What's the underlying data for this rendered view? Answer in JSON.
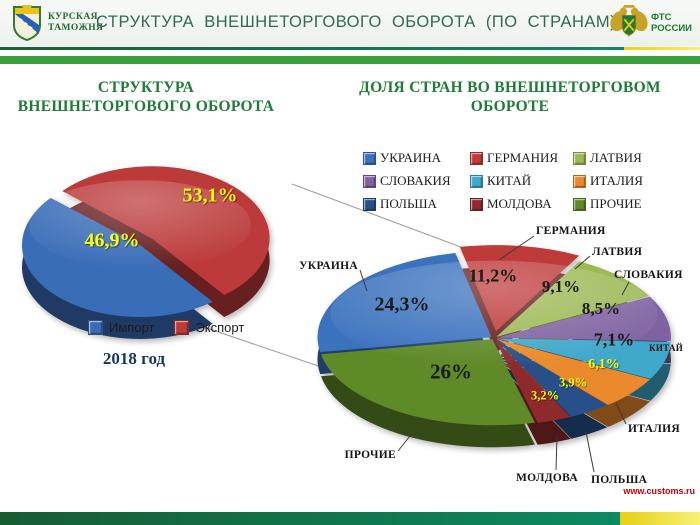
{
  "header": {
    "org_name_line1": "КУРСКАЯ",
    "org_name_line2": "ТАМОЖНЯ",
    "title": "СТРУКТУРА ВНЕШНЕТОРГОВОГО ОБОРОТА (ПО СТРАНАМ)",
    "fts_line1": "ФТС",
    "fts_line2": "РОССИИ"
  },
  "left_panel": {
    "title_line1": "СТРУКТУРА",
    "title_line2": "ВНЕШНЕТОРГОВОГО  ОБОРОТА",
    "year_label": "2018 год"
  },
  "right_panel": {
    "title_line1": "ДОЛЯ СТРАН ВО ВНЕШНЕТОРГОВОМ",
    "title_line2": "ОБОРОТЕ",
    "legend_order": [
      "УКРАИНА",
      "ГЕРМАНИЯ",
      "ЛАТВИЯ",
      "СЛОВАКИЯ",
      "КИТАЙ",
      "ИТАЛИЯ",
      "ПОЛЬША",
      "МОЛДОВА",
      "ПРОЧИЕ"
    ]
  },
  "footer": {
    "website": "www.customs.ru"
  },
  "accent_colors": {
    "title_green": "#1e7c36",
    "header_green": "#2e6a54",
    "footer_red": "#c00000",
    "label_yellow": "#ffff00"
  },
  "chart_data": [
    {
      "type": "pie",
      "title": "СТРУКТУРА ВНЕШНЕТОРГОВОГО ОБОРОТА",
      "subtitle": "2018 год",
      "legend_position": "bottom",
      "series": [
        {
          "name": "Импорт",
          "value": 46.9,
          "label": "46,9%",
          "color": "#3a6db8",
          "label_color": "#ffff00"
        },
        {
          "name": "Экспорт",
          "value": 53.1,
          "label": "53,1%",
          "color": "#bc3a3a",
          "label_color": "#ffff00"
        }
      ]
    },
    {
      "type": "pie",
      "title": "ДОЛЯ СТРАН ВО ВНЕШНЕТОРГОВОМ ОБОРОТЕ",
      "legend_position": "top",
      "series": [
        {
          "name": "ГЕРМАНИЯ",
          "value": 11.2,
          "label": "11,2%",
          "color": "#be3b3a",
          "label_color": "#1a1a1a"
        },
        {
          "name": "ЛАТВИЯ",
          "value": 9.1,
          "label": "9,1%",
          "color": "#9bb954",
          "label_color": "#1a1a1a"
        },
        {
          "name": "СЛОВАКИЯ",
          "value": 8.5,
          "label": "8,5%",
          "color": "#7e62a1",
          "label_color": "#1a1a1a"
        },
        {
          "name": "КИТАЙ",
          "value": 7.1,
          "label": "7,1%",
          "color": "#3fa8cb",
          "label_color": "#1a1a1a"
        },
        {
          "name": "ИТАЛИЯ",
          "value": 6.1,
          "label": "6,1%",
          "color": "#e98a2d",
          "label_color": "#ffff00"
        },
        {
          "name": "ПОЛЬША",
          "value": 3.9,
          "label": "3,9%",
          "color": "#27508b",
          "label_color": "#ffff00"
        },
        {
          "name": "МОЛДОВА",
          "value": 3.2,
          "label": "3,2%",
          "color": "#8f2a2c",
          "label_color": "#ffff00"
        },
        {
          "name": "ПРОЧИЕ",
          "value": 26.0,
          "label": "26%",
          "color": "#5f8a28",
          "label_color": "#1a1a1a"
        },
        {
          "name": "УКРАИНА",
          "value": 24.3,
          "label": "24,3%",
          "color": "#3b72be",
          "label_color": "#1a1a1a"
        }
      ]
    }
  ]
}
